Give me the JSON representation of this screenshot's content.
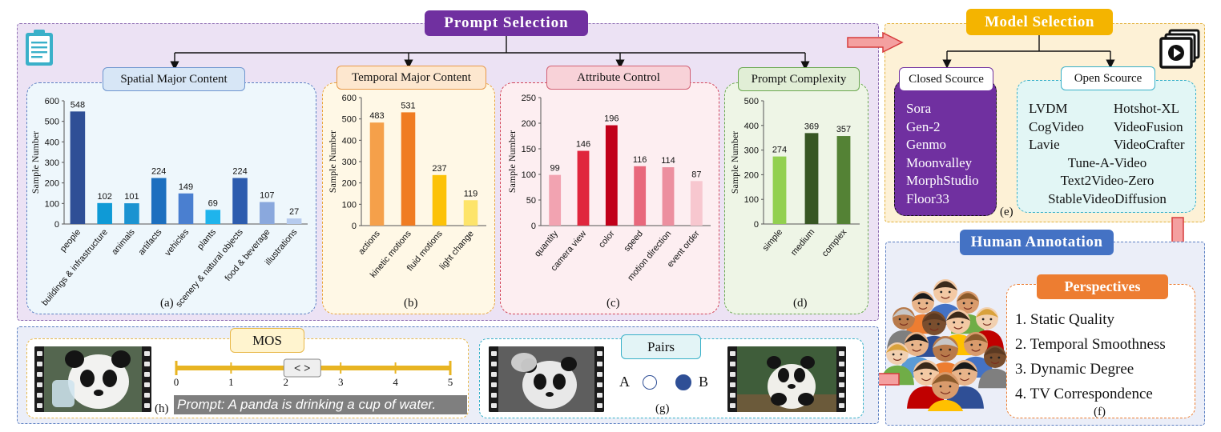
{
  "colors": {
    "purple": "#7030a0",
    "gold": "#f4b400",
    "blue": "#4472c4",
    "orange": "#ed7d31",
    "red_arrow": "#e05a5a"
  },
  "prompt_selection": {
    "title": "Prompt Selection",
    "icon": "clipboard-icon"
  },
  "charts": [
    {
      "key": "spatial",
      "title": "Spatial Major Content",
      "sublabel": "(a)",
      "chart_data": {
        "type": "bar",
        "ylabel": "Sample Number",
        "ylim": [
          0,
          600
        ],
        "yticks": [
          0,
          100,
          200,
          300,
          400,
          500,
          600
        ],
        "categories": [
          "people",
          "buildings & infrastructure",
          "animals",
          "artifacts",
          "vehicles",
          "plants",
          "scenery & natural objects",
          "food & beverage",
          "illustrations"
        ],
        "values": [
          548,
          102,
          101,
          224,
          149,
          69,
          224,
          107,
          27
        ],
        "colors": [
          "#2f4f96",
          "#0f9ad6",
          "#1b93d1",
          "#1c6fbf",
          "#4a7fd0",
          "#1fb4ec",
          "#2d5cae",
          "#8aa8dd",
          "#b6cbee"
        ]
      }
    },
    {
      "key": "temporal",
      "title": "Temporal Major Content",
      "sublabel": "(b)",
      "chart_data": {
        "type": "bar",
        "ylabel": "Sample Number",
        "ylim": [
          0,
          600
        ],
        "yticks": [
          0,
          100,
          200,
          300,
          400,
          500,
          600
        ],
        "categories": [
          "actions",
          "kinetic motions",
          "fluid motions",
          "light change"
        ],
        "values": [
          483,
          531,
          237,
          119
        ],
        "colors": [
          "#f5a04a",
          "#f07c22",
          "#fcc208",
          "#fde46a"
        ]
      }
    },
    {
      "key": "attribute",
      "title": "Attribute Control",
      "sublabel": "(c)",
      "chart_data": {
        "type": "bar",
        "ylabel": "Sample Number",
        "ylim": [
          0,
          250
        ],
        "yticks": [
          0,
          50,
          100,
          150,
          200,
          250
        ],
        "categories": [
          "quantity",
          "camera view",
          "color",
          "speed",
          "motion direction",
          "event order"
        ],
        "values": [
          99,
          146,
          196,
          116,
          114,
          87
        ],
        "colors": [
          "#f2a3b1",
          "#e0263d",
          "#c1001a",
          "#e8687c",
          "#ec8f9f",
          "#f7c7cf"
        ]
      }
    },
    {
      "key": "complexity",
      "title": "Prompt Complexity",
      "sublabel": "(d)",
      "chart_data": {
        "type": "bar",
        "ylabel": "Sample Number",
        "ylim": [
          0,
          500
        ],
        "yticks": [
          0,
          100,
          200,
          300,
          400,
          500
        ],
        "categories": [
          "simple",
          "medium",
          "complex"
        ],
        "values": [
          274,
          369,
          357
        ],
        "colors": [
          "#92d050",
          "#375623",
          "#548235"
        ]
      }
    }
  ],
  "model_selection": {
    "title": "Model Selection",
    "icon": "video-play-icon",
    "sublabel": "(e)",
    "closed_title": "Closed Scource",
    "closed_models": [
      "Sora",
      "Gen-2",
      "Genmo",
      "Moonvalley",
      "MorphStudio",
      "Floor33"
    ],
    "open_title": "Open Scource",
    "open_models_rows": [
      [
        "LVDM",
        "Hotshot-XL"
      ],
      [
        "CogVideo",
        "VideoFusion"
      ],
      [
        "Lavie",
        "VideoCrafter"
      ],
      [
        "Tune-A-Video"
      ],
      [
        "Text2Video-Zero"
      ],
      [
        "StableVideoDiffusion"
      ]
    ]
  },
  "human_annotation": {
    "title": "Human Annotation",
    "icon": "crowd-icon",
    "perspectives_title": "Perspectives",
    "perspectives": [
      "1. Static Quality",
      "2. Temporal Smoothness",
      "3. Dynamic Degree",
      "4. TV Correspondence"
    ],
    "sublabel": "(f)"
  },
  "pairs": {
    "title": "Pairs",
    "option_a": "A",
    "option_b": "B",
    "selected": "B",
    "sublabel": "(g)"
  },
  "mos": {
    "title": "MOS",
    "scale_min": 0,
    "scale_max": 5,
    "ticks": [
      "0",
      "1",
      "2",
      "3",
      "4",
      "5"
    ],
    "handle_value": 2.3,
    "handle_label": "< >",
    "prompt": "Prompt: A panda is drinking a cup of water.",
    "sublabel": "(h)"
  }
}
